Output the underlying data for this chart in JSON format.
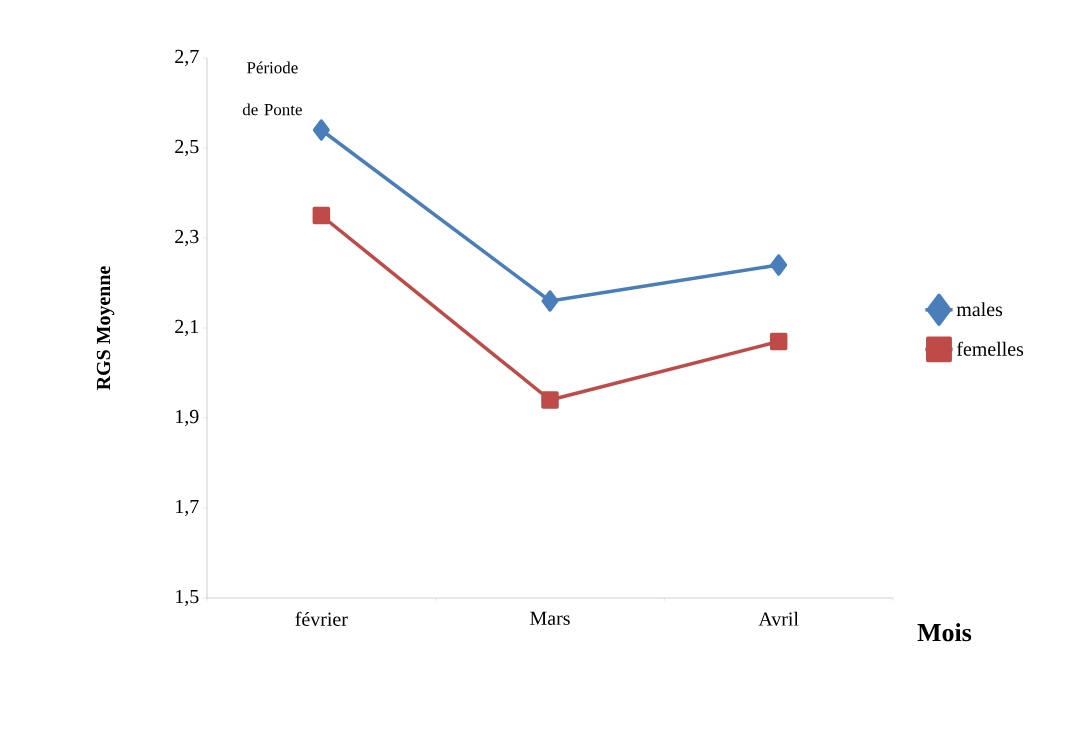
{
  "chart_data": {
    "type": "line",
    "xlabel": "Mois",
    "ylabel": "RGS Moyenne",
    "categories": [
      "février",
      "Mars",
      "Avril"
    ],
    "series": [
      {
        "name": "males",
        "color": "#4a7ebb",
        "marker": "diamond",
        "values": [
          2.54,
          2.16,
          2.24
        ]
      },
      {
        "name": "femelles",
        "color": "#be4b48",
        "marker": "square",
        "values": [
          2.35,
          1.94,
          2.07
        ]
      }
    ],
    "ylim": [
      1.5,
      2.7
    ],
    "yticks": [
      {
        "value": 1.5,
        "label": "1,5"
      },
      {
        "value": 1.7,
        "label": "1,7"
      },
      {
        "value": 1.9,
        "label": "1,9"
      },
      {
        "value": 2.1,
        "label": "2,1"
      },
      {
        "value": 2.3,
        "label": "2,3"
      },
      {
        "value": 2.5,
        "label": "2,5"
      },
      {
        "value": 2.7,
        "label": "2,7"
      }
    ],
    "legend": "right",
    "grid": false,
    "line_style": "solid",
    "annotations": [
      "Période de Ponte"
    ]
  }
}
